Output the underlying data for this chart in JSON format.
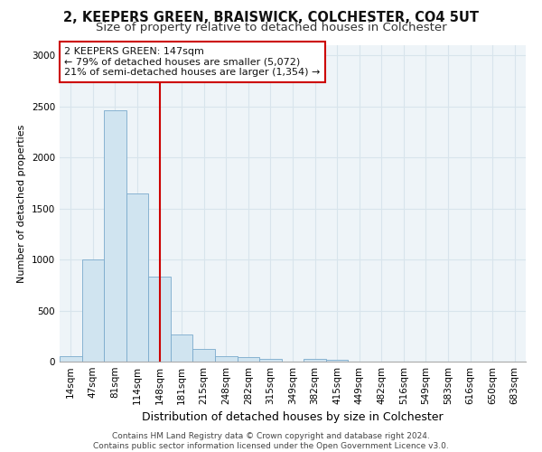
{
  "title": "2, KEEPERS GREEN, BRAISWICK, COLCHESTER, CO4 5UT",
  "subtitle": "Size of property relative to detached houses in Colchester",
  "xlabel": "Distribution of detached houses by size in Colchester",
  "ylabel": "Number of detached properties",
  "categories": [
    "14sqm",
    "47sqm",
    "81sqm",
    "114sqm",
    "148sqm",
    "181sqm",
    "215sqm",
    "248sqm",
    "282sqm",
    "315sqm",
    "349sqm",
    "382sqm",
    "415sqm",
    "449sqm",
    "482sqm",
    "516sqm",
    "549sqm",
    "583sqm",
    "616sqm",
    "650sqm",
    "683sqm"
  ],
  "values": [
    55,
    1000,
    2460,
    1650,
    830,
    270,
    125,
    55,
    40,
    25,
    0,
    30,
    20,
    0,
    0,
    0,
    0,
    0,
    0,
    0,
    0
  ],
  "bar_color": "#d0e4f0",
  "bar_edgecolor": "#7aaacc",
  "grid_color": "#d8e4ec",
  "bg_color": "#eef4f8",
  "vline_x": 4,
  "vline_color": "#cc0000",
  "annotation_text": "2 KEEPERS GREEN: 147sqm\n← 79% of detached houses are smaller (5,072)\n21% of semi-detached houses are larger (1,354) →",
  "annotation_box_facecolor": "#ffffff",
  "annotation_box_edgecolor": "#cc0000",
  "ylim": [
    0,
    3100
  ],
  "yticks": [
    0,
    500,
    1000,
    1500,
    2000,
    2500,
    3000
  ],
  "footer_text": "Contains HM Land Registry data © Crown copyright and database right 2024.\nContains public sector information licensed under the Open Government Licence v3.0.",
  "title_fontsize": 10.5,
  "subtitle_fontsize": 9.5,
  "xlabel_fontsize": 9,
  "ylabel_fontsize": 8,
  "tick_fontsize": 7.5,
  "annotation_fontsize": 8,
  "footer_fontsize": 6.5
}
